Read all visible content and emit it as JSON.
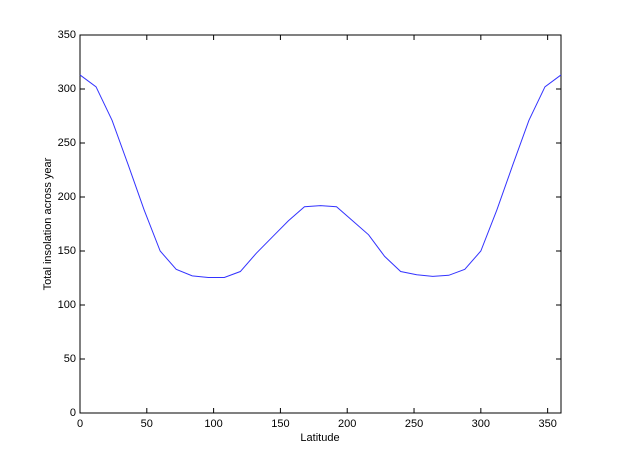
{
  "chart_data": {
    "type": "line",
    "xlabel": "Latitude",
    "ylabel": "Total insolation across year",
    "x": [
      0,
      12,
      24,
      36,
      48,
      60,
      72,
      84,
      96,
      108,
      120,
      132,
      144,
      156,
      168,
      180,
      192,
      204,
      216,
      228,
      240,
      252,
      264,
      276,
      288,
      300,
      312,
      324,
      336,
      348,
      360
    ],
    "series": [
      {
        "color": "#3333ff",
        "values": [
          313,
          302,
          271,
          230,
          188,
          150,
          133,
          127,
          125.5,
          125.5,
          131,
          148,
          163,
          178,
          191,
          192,
          191,
          178,
          165,
          145,
          131,
          128,
          126.5,
          127.5,
          133,
          150,
          188,
          230,
          271,
          302,
          313
        ]
      }
    ],
    "xlim": [
      0,
      360
    ],
    "xticks": [
      0,
      50,
      100,
      150,
      200,
      250,
      300,
      350
    ],
    "ylim": [
      0,
      350
    ],
    "yticks": [
      0,
      50,
      100,
      150,
      200,
      250,
      300,
      350
    ],
    "grid": false
  }
}
